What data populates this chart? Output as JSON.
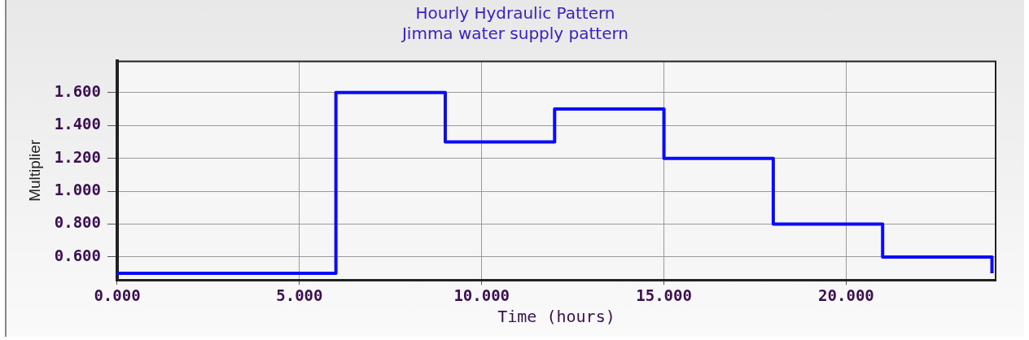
{
  "chart_data": {
    "type": "step",
    "title": "Hourly Hydraulic Pattern",
    "subtitle": "Jimma water supply pattern",
    "xlabel": "Time (hours)",
    "ylabel": "Multiplier",
    "x": [
      0,
      6,
      9,
      12,
      15,
      18,
      21,
      24
    ],
    "series": [
      {
        "color": "#0a0aff",
        "values": [
          0.5,
          1.6,
          1.3,
          1.5,
          1.2,
          0.8,
          0.6,
          0.5
        ]
      }
    ],
    "xlim": [
      0,
      24.1
    ],
    "ylim": [
      0.46,
      1.79
    ],
    "xticks": [
      {
        "value": 0,
        "label": "0.000"
      },
      {
        "value": 5,
        "label": "5.000"
      },
      {
        "value": 10,
        "label": "10.000"
      },
      {
        "value": 15,
        "label": "15.000"
      },
      {
        "value": 20,
        "label": "20.000"
      }
    ],
    "yticks": [
      {
        "value": 0.6,
        "label": "0.600"
      },
      {
        "value": 0.8,
        "label": "0.800"
      },
      {
        "value": 1.0,
        "label": "1.000"
      },
      {
        "value": 1.2,
        "label": "1.200"
      },
      {
        "value": 1.4,
        "label": "1.400"
      },
      {
        "value": 1.6,
        "label": "1.600"
      }
    ],
    "grid": true,
    "legend": false,
    "marker": "none",
    "line_style": "solid"
  }
}
